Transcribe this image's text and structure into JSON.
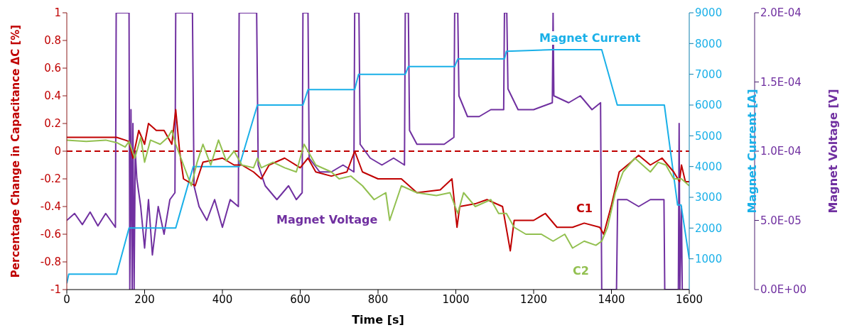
{
  "chart_data": {
    "type": "line",
    "xlabel": "Time [s]",
    "ylabel": "Percentage Change in Capacitance ΔC [%]",
    "y2label": "Magnet Current [A]",
    "y3label": "Magnet Voltage [V]",
    "xlim": [
      0,
      1600
    ],
    "xticks": [
      0,
      200,
      400,
      600,
      800,
      1000,
      1200,
      1400,
      1600
    ],
    "ylim": [
      -1,
      1
    ],
    "yticks": [
      -1,
      -0.8,
      -0.6,
      -0.4,
      -0.2,
      0,
      0.2,
      0.4,
      0.6,
      0.8,
      1
    ],
    "y2lim": [
      0,
      9000
    ],
    "y2ticks": [
      1000,
      2000,
      3000,
      4000,
      5000,
      6000,
      7000,
      8000,
      9000
    ],
    "y3lim": [
      0,
      0.0002
    ],
    "y3ticks": [
      {
        "value": 0,
        "label": "0.0E+00"
      },
      {
        "value": 5e-05,
        "label": "5.0E-05"
      },
      {
        "value": 0.0001,
        "label": "1.0E-04"
      },
      {
        "value": 0.00015,
        "label": "1.5E-04"
      },
      {
        "value": 0.0002,
        "label": "2.0E-04"
      }
    ],
    "marker": "none",
    "line_style": "solid",
    "ref_lines": [
      {
        "axis": "y",
        "value": 0,
        "color": "#c00000",
        "line_style": "dashed"
      }
    ],
    "series": [
      {
        "name": "Magnet Voltage",
        "color": "#7030a0",
        "axis": "y3",
        "x": [
          0,
          20,
          40,
          60,
          80,
          100,
          125,
          127,
          160,
          162,
          165,
          168,
          170,
          173,
          176,
          180,
          190,
          200,
          210,
          220,
          235,
          250,
          265,
          278,
          280,
          323,
          327,
          340,
          360,
          380,
          400,
          420,
          441,
          443,
          488,
          492,
          510,
          540,
          570,
          590,
          605,
          607,
          620,
          623,
          650,
          680,
          710,
          738,
          740,
          751,
          754,
          780,
          810,
          840,
          868,
          870,
          878,
          881,
          900,
          940,
          970,
          995,
          997,
          1005,
          1008,
          1030,
          1060,
          1090,
          1123,
          1125,
          1131,
          1134,
          1160,
          1200,
          1248,
          1250,
          1252,
          1290,
          1320,
          1350,
          1372,
          1375,
          1413,
          1416,
          1440,
          1470,
          1500,
          1535,
          1537,
          1572,
          1574,
          1576,
          1580,
          1582,
          1600
        ],
        "values": [
          5e-05,
          5.5e-05,
          4.7e-05,
          5.6e-05,
          4.6e-05,
          5.5e-05,
          4.5e-05,
          0.0002,
          0.0002,
          0,
          0.00013,
          0,
          0.00012,
          0,
          0.0001,
          8e-05,
          6e-05,
          3e-05,
          6.5e-05,
          2.5e-05,
          6e-05,
          4e-05,
          6.5e-05,
          7e-05,
          0.0002,
          0.0002,
          7.5e-05,
          6e-05,
          5e-05,
          6.5e-05,
          4.5e-05,
          6.5e-05,
          6e-05,
          0.0002,
          0.0002,
          9e-05,
          7.5e-05,
          6.5e-05,
          7.5e-05,
          6.5e-05,
          7e-05,
          0.0002,
          0.0002,
          9.5e-05,
          8.5e-05,
          8.5e-05,
          9e-05,
          8.5e-05,
          0.0002,
          0.0002,
          0.000105,
          9.5e-05,
          9e-05,
          9.5e-05,
          9e-05,
          0.0002,
          0.0002,
          0.000115,
          0.000105,
          0.000105,
          0.000105,
          0.00011,
          0.0002,
          0.0002,
          0.00014,
          0.000125,
          0.000125,
          0.00013,
          0.00013,
          0.0002,
          0.0002,
          0.000145,
          0.00013,
          0.00013,
          0.000135,
          0.0002,
          0.00014,
          0.000135,
          0.00014,
          0.00013,
          0.000135,
          0,
          0,
          6.5e-05,
          6.5e-05,
          6e-05,
          6.5e-05,
          6.5e-05,
          0,
          0,
          0.00012,
          0,
          6e-05,
          0,
          0
        ]
      },
      {
        "name": "Magnet Current",
        "color": "#1ab0e8",
        "axis": "y2",
        "x": [
          0,
          5,
          128,
          160,
          280,
          325,
          443,
          490,
          607,
          620,
          740,
          750,
          870,
          878,
          997,
          1005,
          1125,
          1130,
          1250,
          1375,
          1415,
          1536,
          1570,
          1579,
          1600
        ],
        "values": [
          200,
          500,
          500,
          2000,
          2000,
          4000,
          4000,
          6000,
          6000,
          6500,
          6500,
          7000,
          7000,
          7250,
          7250,
          7500,
          7500,
          7750,
          7800,
          7800,
          6000,
          6000,
          2750,
          2750,
          1000
        ]
      },
      {
        "name": "C1",
        "color": "#c00000",
        "axis": "y",
        "x": [
          0,
          50,
          100,
          128,
          150,
          160,
          170,
          185,
          200,
          210,
          230,
          250,
          270,
          280,
          290,
          300,
          330,
          350,
          400,
          430,
          450,
          480,
          500,
          520,
          560,
          600,
          620,
          640,
          680,
          720,
          740,
          760,
          800,
          860,
          900,
          960,
          990,
          1003,
          1010,
          1050,
          1080,
          1120,
          1140,
          1150,
          1200,
          1230,
          1260,
          1300,
          1330,
          1370,
          1380,
          1400,
          1420,
          1450,
          1470,
          1500,
          1530,
          1560,
          1575,
          1580,
          1590,
          1600
        ],
        "values": [
          0.1,
          0.1,
          0.1,
          0.1,
          0.08,
          0.07,
          -0.05,
          0.15,
          0.05,
          0.2,
          0.15,
          0.15,
          0.05,
          0.3,
          0,
          -0.2,
          -0.25,
          -0.08,
          -0.05,
          -0.1,
          -0.1,
          -0.15,
          -0.2,
          -0.1,
          -0.05,
          -0.12,
          -0.05,
          -0.15,
          -0.18,
          -0.15,
          0,
          -0.15,
          -0.2,
          -0.2,
          -0.3,
          -0.28,
          -0.2,
          -0.55,
          -0.4,
          -0.38,
          -0.35,
          -0.4,
          -0.72,
          -0.5,
          -0.5,
          -0.45,
          -0.55,
          -0.55,
          -0.52,
          -0.55,
          -0.6,
          -0.39,
          -0.15,
          -0.08,
          -0.03,
          -0.1,
          -0.05,
          -0.15,
          -0.22,
          -0.1,
          -0.22,
          -0.22
        ]
      },
      {
        "name": "C2",
        "color": "#92c050",
        "axis": "y",
        "x": [
          0,
          50,
          100,
          130,
          150,
          160,
          175,
          190,
          200,
          215,
          240,
          260,
          270,
          280,
          300,
          320,
          335,
          350,
          370,
          390,
          410,
          430,
          450,
          480,
          490,
          500,
          530,
          560,
          590,
          610,
          640,
          680,
          700,
          730,
          760,
          790,
          820,
          830,
          860,
          900,
          950,
          985,
          1005,
          1020,
          1050,
          1090,
          1110,
          1130,
          1150,
          1180,
          1220,
          1250,
          1280,
          1300,
          1330,
          1360,
          1375,
          1390,
          1410,
          1430,
          1460,
          1480,
          1500,
          1520,
          1540,
          1560,
          1580,
          1600
        ],
        "values": [
          0.08,
          0.07,
          0.08,
          0.06,
          0.03,
          0.07,
          -0.05,
          0.1,
          -0.08,
          0.08,
          0.05,
          0.1,
          0.15,
          0.05,
          -0.1,
          -0.25,
          -0.08,
          0.05,
          -0.1,
          0.08,
          -0.07,
          0,
          -0.1,
          -0.12,
          -0.05,
          -0.12,
          -0.08,
          -0.12,
          -0.15,
          0.05,
          -0.1,
          -0.15,
          -0.2,
          -0.18,
          -0.25,
          -0.35,
          -0.3,
          -0.5,
          -0.25,
          -0.3,
          -0.32,
          -0.3,
          -0.45,
          -0.3,
          -0.4,
          -0.35,
          -0.45,
          -0.45,
          -0.55,
          -0.6,
          -0.6,
          -0.65,
          -0.6,
          -0.7,
          -0.65,
          -0.68,
          -0.65,
          -0.55,
          -0.3,
          -0.15,
          -0.05,
          -0.1,
          -0.15,
          -0.08,
          -0.1,
          -0.2,
          -0.2,
          -0.25
        ]
      }
    ]
  }
}
